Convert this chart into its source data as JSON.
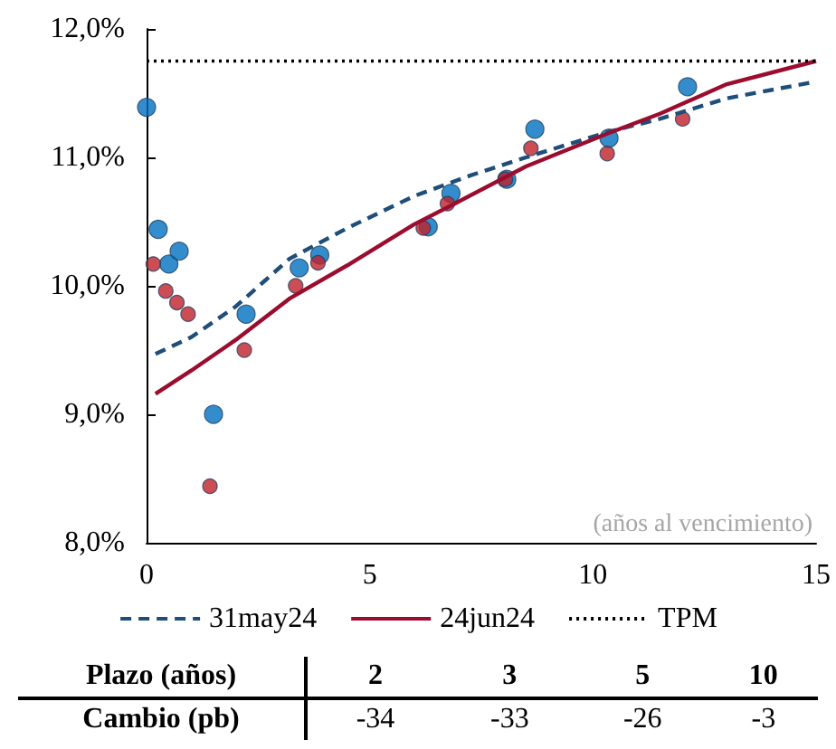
{
  "chart_data": [
    {
      "type": "scatter",
      "xlim": [
        0,
        15
      ],
      "xticks": [
        0,
        5,
        10,
        15
      ],
      "ylim": [
        8,
        12
      ],
      "yticks": [
        {
          "value": 8,
          "label": "8,0%"
        },
        {
          "value": 9,
          "label": "9,0%"
        },
        {
          "value": 10,
          "label": "10,0%"
        },
        {
          "value": 11,
          "label": "11,0%"
        },
        {
          "value": 12,
          "label": "12,0%"
        }
      ],
      "grid": false,
      "legend": "bottom",
      "annotations": [
        "(años al vencimiento)"
      ],
      "series": [
        {
          "type": "scatter",
          "marker": "circle",
          "color": "#0070c0",
          "x": [
            0,
            0.26,
            0.5,
            0.73,
            1.5,
            2.23,
            3.42,
            3.88,
            6.31,
            6.82,
            8.07,
            8.7,
            10.36,
            12.12
          ],
          "values": [
            11.39,
            10.44,
            10.17,
            10.27,
            9.0,
            9.78,
            10.14,
            10.24,
            10.46,
            10.72,
            10.83,
            11.22,
            11.15,
            11.55
          ]
        },
        {
          "type": "scatter",
          "marker": "circle",
          "color": "#c0202a",
          "x": [
            0.15,
            0.43,
            0.68,
            0.93,
            1.42,
            2.19,
            3.34,
            3.84,
            6.2,
            6.74,
            8.04,
            8.61,
            10.32,
            12.01
          ],
          "values": [
            10.17,
            9.96,
            9.87,
            9.78,
            8.44,
            9.5,
            10.0,
            10.18,
            10.45,
            10.64,
            10.83,
            11.07,
            11.03,
            11.3
          ]
        },
        {
          "type": "line",
          "name": "31may24",
          "marker": "none",
          "line_style": "dashed",
          "color": "#1f4e79",
          "x": [
            0.2,
            1,
            2,
            3.2,
            4.5,
            6,
            7.26,
            8.5,
            10.36,
            11.5,
            13,
            15
          ],
          "values": [
            9.47,
            9.6,
            9.84,
            10.21,
            10.45,
            10.7,
            10.86,
            11.0,
            11.2,
            11.3,
            11.46,
            11.59
          ]
        },
        {
          "type": "line",
          "name": "24jun24",
          "marker": "none",
          "line_style": "solid",
          "color": "#9b0d2f",
          "x": [
            0.2,
            1,
            2,
            3.2,
            4.5,
            6,
            6.85,
            8.5,
            10.36,
            11.5,
            13,
            15
          ],
          "values": [
            9.16,
            9.34,
            9.58,
            9.9,
            10.16,
            10.48,
            10.63,
            10.93,
            11.19,
            11.34,
            11.57,
            11.75
          ]
        }
      ],
      "ref_lines": [
        {
          "axis": "y",
          "value": 11.75,
          "label": "TPM",
          "color": "#000000",
          "line_style": "dotted"
        }
      ]
    },
    {
      "type": "other",
      "xlabel": "Plazo (años)",
      "ylabel": "Cambio (pb)",
      "categories": [
        "2",
        "3",
        "5",
        "10"
      ],
      "values": [
        -34,
        -33,
        -26,
        -3
      ],
      "data_labels": true
    }
  ]
}
